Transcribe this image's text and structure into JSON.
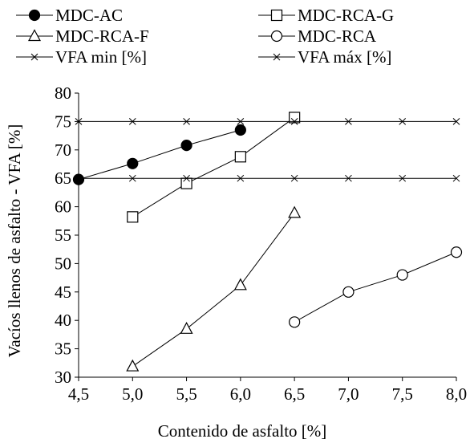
{
  "chart_data": {
    "type": "line",
    "xlabel": "Contenido de asfalto [%]",
    "ylabel": "Vacíos llenos de asfalto - VFA [%]",
    "xlim": [
      4.5,
      8.0
    ],
    "ylim": [
      30,
      80
    ],
    "x_ticks": [
      "4,5",
      "5,0",
      "5,5",
      "6,0",
      "6,5",
      "7,0",
      "7,5",
      "8,0"
    ],
    "y_ticks": [
      "30",
      "35",
      "40",
      "45",
      "50",
      "55",
      "60",
      "65",
      "70",
      "75",
      "80"
    ],
    "grid": false,
    "legend_position": "top",
    "series": [
      {
        "name": "MDC-AC",
        "marker": "filled-circle",
        "x": [
          4.5,
          5.0,
          5.5,
          6.0
        ],
        "y": [
          64.8,
          67.6,
          70.8,
          73.5
        ]
      },
      {
        "name": "MDC-RCA-G",
        "marker": "open-square",
        "x": [
          5.0,
          5.5,
          6.0,
          6.5
        ],
        "y": [
          58.2,
          64.1,
          68.8,
          75.7
        ]
      },
      {
        "name": "MDC-RCA-F",
        "marker": "open-triangle",
        "x": [
          5.0,
          5.5,
          6.0,
          6.5
        ],
        "y": [
          31.9,
          38.5,
          46.2,
          58.9
        ]
      },
      {
        "name": "MDC-RCA",
        "marker": "open-circle",
        "x": [
          6.5,
          7.0,
          7.5,
          8.0
        ],
        "y": [
          39.7,
          45.0,
          48.0,
          52.0
        ]
      },
      {
        "name": "VFA min [%]",
        "marker": "x",
        "x": [
          4.5,
          5.0,
          5.5,
          6.0,
          6.5,
          7.0,
          7.5,
          8.0
        ],
        "y": [
          65,
          65,
          65,
          65,
          65,
          65,
          65,
          65
        ]
      },
      {
        "name": "VFA máx [%]",
        "marker": "x",
        "x": [
          4.5,
          5.0,
          5.5,
          6.0,
          6.5,
          7.0,
          7.5,
          8.0
        ],
        "y": [
          75,
          75,
          75,
          75,
          75,
          75,
          75,
          75
        ]
      }
    ]
  }
}
